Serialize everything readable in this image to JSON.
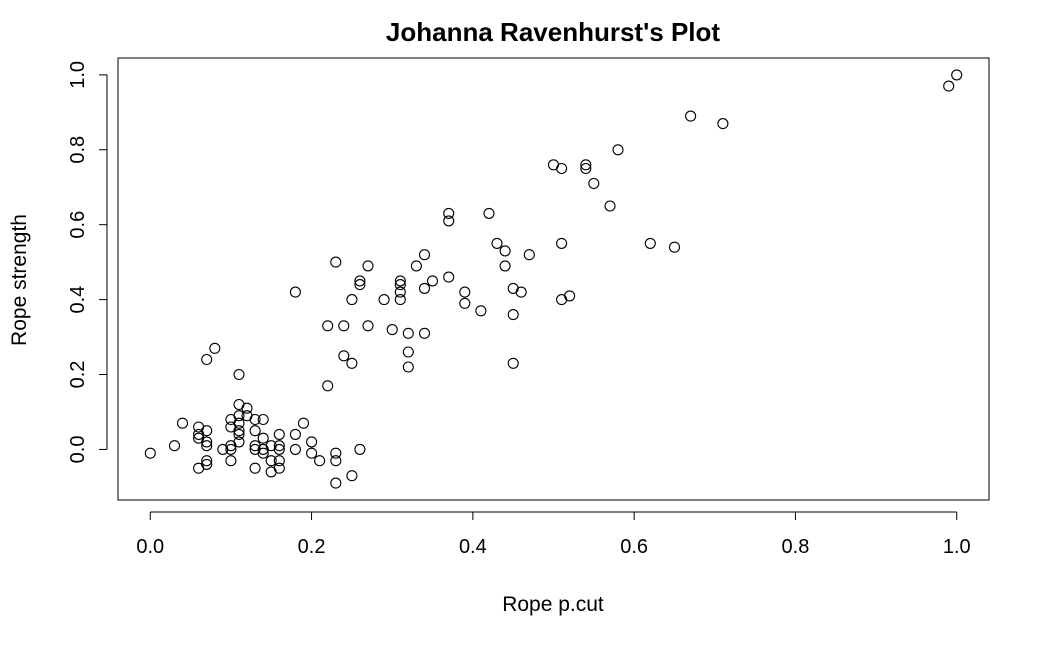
{
  "chart_data": {
    "type": "scatter",
    "title": "Johanna Ravenhurst's Plot",
    "xlabel": "Rope p.cut",
    "ylabel": "Rope strength",
    "xlim": [
      -0.04,
      1.04
    ],
    "ylim": [
      -0.135,
      1.045
    ],
    "x_ticks": [
      0.0,
      0.2,
      0.4,
      0.6,
      0.8,
      1.0
    ],
    "x_tick_labels": [
      "0.0",
      "0.2",
      "0.4",
      "0.6",
      "0.8",
      "1.0"
    ],
    "y_ticks": [
      0.0,
      0.2,
      0.4,
      0.6,
      0.8,
      1.0
    ],
    "y_tick_labels": [
      "0.0",
      "0.2",
      "0.4",
      "0.6",
      "0.8",
      "1.0"
    ],
    "grid": false,
    "legend": "none",
    "marker": "open-circle",
    "point_color": "#000000",
    "points": [
      [
        0.0,
        -0.01
      ],
      [
        0.03,
        0.01
      ],
      [
        0.04,
        0.07
      ],
      [
        0.06,
        0.06
      ],
      [
        0.06,
        0.04
      ],
      [
        0.06,
        0.03
      ],
      [
        0.06,
        -0.05
      ],
      [
        0.07,
        0.05
      ],
      [
        0.07,
        0.02
      ],
      [
        0.07,
        0.01
      ],
      [
        0.07,
        -0.03
      ],
      [
        0.07,
        -0.04
      ],
      [
        0.07,
        0.24
      ],
      [
        0.08,
        0.27
      ],
      [
        0.09,
        0.0
      ],
      [
        0.1,
        0.08
      ],
      [
        0.1,
        0.06
      ],
      [
        0.1,
        0.01
      ],
      [
        0.1,
        0.0
      ],
      [
        0.1,
        -0.03
      ],
      [
        0.11,
        0.2
      ],
      [
        0.11,
        0.12
      ],
      [
        0.11,
        0.09
      ],
      [
        0.11,
        0.07
      ],
      [
        0.11,
        0.05
      ],
      [
        0.11,
        0.04
      ],
      [
        0.11,
        0.02
      ],
      [
        0.12,
        0.11
      ],
      [
        0.12,
        0.09
      ],
      [
        0.13,
        0.08
      ],
      [
        0.13,
        0.05
      ],
      [
        0.13,
        0.01
      ],
      [
        0.13,
        0.0
      ],
      [
        0.13,
        -0.05
      ],
      [
        0.14,
        0.08
      ],
      [
        0.14,
        0.03
      ],
      [
        0.14,
        0.0
      ],
      [
        0.14,
        -0.01
      ],
      [
        0.15,
        0.01
      ],
      [
        0.15,
        -0.03
      ],
      [
        0.15,
        -0.06
      ],
      [
        0.16,
        0.04
      ],
      [
        0.16,
        0.01
      ],
      [
        0.16,
        0.0
      ],
      [
        0.16,
        -0.03
      ],
      [
        0.16,
        -0.05
      ],
      [
        0.18,
        0.42
      ],
      [
        0.18,
        0.04
      ],
      [
        0.18,
        0.0
      ],
      [
        0.19,
        0.07
      ],
      [
        0.2,
        0.02
      ],
      [
        0.2,
        -0.01
      ],
      [
        0.21,
        -0.03
      ],
      [
        0.22,
        0.33
      ],
      [
        0.22,
        0.17
      ],
      [
        0.23,
        0.5
      ],
      [
        0.23,
        -0.01
      ],
      [
        0.23,
        -0.03
      ],
      [
        0.23,
        -0.09
      ],
      [
        0.24,
        0.33
      ],
      [
        0.24,
        0.25
      ],
      [
        0.25,
        0.4
      ],
      [
        0.25,
        0.23
      ],
      [
        0.25,
        -0.07
      ],
      [
        0.26,
        0.45
      ],
      [
        0.26,
        0.44
      ],
      [
        0.26,
        0.0
      ],
      [
        0.27,
        0.49
      ],
      [
        0.27,
        0.33
      ],
      [
        0.29,
        0.4
      ],
      [
        0.3,
        0.32
      ],
      [
        0.31,
        0.45
      ],
      [
        0.31,
        0.44
      ],
      [
        0.31,
        0.42
      ],
      [
        0.31,
        0.4
      ],
      [
        0.32,
        0.31
      ],
      [
        0.32,
        0.26
      ],
      [
        0.32,
        0.22
      ],
      [
        0.33,
        0.49
      ],
      [
        0.34,
        0.52
      ],
      [
        0.34,
        0.43
      ],
      [
        0.34,
        0.31
      ],
      [
        0.35,
        0.45
      ],
      [
        0.37,
        0.63
      ],
      [
        0.37,
        0.61
      ],
      [
        0.37,
        0.46
      ],
      [
        0.39,
        0.42
      ],
      [
        0.39,
        0.39
      ],
      [
        0.41,
        0.37
      ],
      [
        0.42,
        0.63
      ],
      [
        0.43,
        0.55
      ],
      [
        0.44,
        0.53
      ],
      [
        0.44,
        0.49
      ],
      [
        0.45,
        0.43
      ],
      [
        0.45,
        0.36
      ],
      [
        0.45,
        0.23
      ],
      [
        0.46,
        0.42
      ],
      [
        0.47,
        0.52
      ],
      [
        0.5,
        0.76
      ],
      [
        0.51,
        0.75
      ],
      [
        0.51,
        0.55
      ],
      [
        0.51,
        0.4
      ],
      [
        0.52,
        0.41
      ],
      [
        0.54,
        0.76
      ],
      [
        0.54,
        0.75
      ],
      [
        0.55,
        0.71
      ],
      [
        0.57,
        0.65
      ],
      [
        0.58,
        0.8
      ],
      [
        0.62,
        0.55
      ],
      [
        0.65,
        0.54
      ],
      [
        0.67,
        0.89
      ],
      [
        0.71,
        0.87
      ],
      [
        0.99,
        0.97
      ],
      [
        1.0,
        1.0
      ]
    ]
  }
}
